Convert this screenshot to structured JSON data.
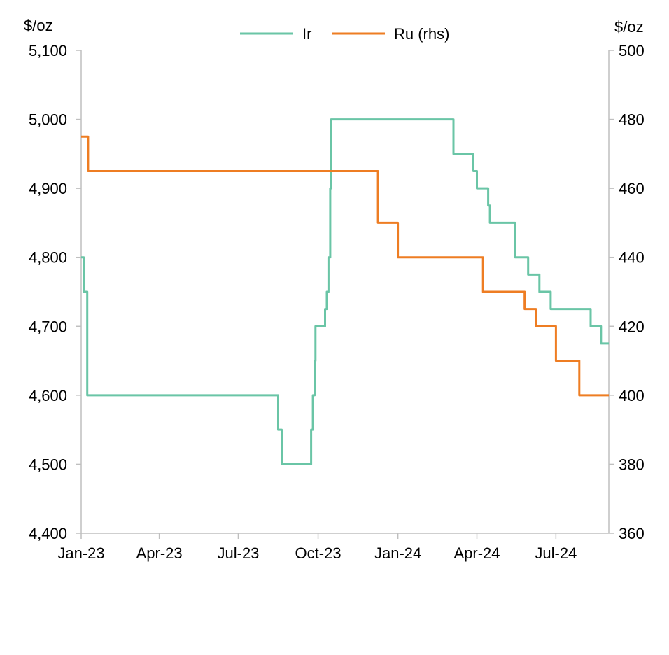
{
  "chart_data": {
    "type": "line",
    "left_unit": "$/oz",
    "right_unit": "$/oz",
    "x_ticks": [
      "Jan-23",
      "Apr-23",
      "Jul-23",
      "Oct-23",
      "Jan-24",
      "Apr-24",
      "Jul-24"
    ],
    "x_tick_dates": [
      "2023-01-01",
      "2023-04-01",
      "2023-07-01",
      "2023-10-01",
      "2024-01-01",
      "2024-04-01",
      "2024-07-01"
    ],
    "xlim": [
      "2023-01-01",
      "2024-08-31"
    ],
    "y_left": {
      "lim": [
        4400,
        5100
      ],
      "ticks": [
        "4,400",
        "4,500",
        "4,600",
        "4,700",
        "4,800",
        "4,900",
        "5,000",
        "5,100"
      ]
    },
    "y_right": {
      "lim": [
        360,
        500
      ],
      "ticks": [
        "360",
        "380",
        "400",
        "420",
        "440",
        "460",
        "480",
        "500"
      ]
    },
    "grid": false,
    "legend_position": "top",
    "series": [
      {
        "name": "Ir",
        "axis": "left",
        "color": "#6ac5a6",
        "step": true,
        "points": [
          [
            "2023-01-01",
            4800
          ],
          [
            "2023-01-04",
            4750
          ],
          [
            "2023-01-07",
            4750
          ],
          [
            "2023-01-08",
            4600
          ],
          [
            "2023-08-15",
            4600
          ],
          [
            "2023-08-16",
            4550
          ],
          [
            "2023-08-19",
            4550
          ],
          [
            "2023-08-20",
            4500
          ],
          [
            "2023-09-22",
            4500
          ],
          [
            "2023-09-23",
            4550
          ],
          [
            "2023-09-25",
            4600
          ],
          [
            "2023-09-26",
            4600
          ],
          [
            "2023-09-27",
            4650
          ],
          [
            "2023-09-28",
            4700
          ],
          [
            "2023-10-08",
            4700
          ],
          [
            "2023-10-09",
            4725
          ],
          [
            "2023-10-10",
            4725
          ],
          [
            "2023-10-11",
            4750
          ],
          [
            "2023-10-13",
            4800
          ],
          [
            "2023-10-15",
            4900
          ],
          [
            "2023-10-16",
            5000
          ],
          [
            "2024-03-04",
            5000
          ],
          [
            "2024-03-05",
            4950
          ],
          [
            "2024-03-27",
            4950
          ],
          [
            "2024-03-28",
            4925
          ],
          [
            "2024-03-31",
            4925
          ],
          [
            "2024-04-01",
            4900
          ],
          [
            "2024-04-13",
            4900
          ],
          [
            "2024-04-14",
            4875
          ],
          [
            "2024-04-15",
            4875
          ],
          [
            "2024-04-16",
            4850
          ],
          [
            "2024-05-14",
            4850
          ],
          [
            "2024-05-15",
            4800
          ],
          [
            "2024-05-29",
            4800
          ],
          [
            "2024-05-30",
            4775
          ],
          [
            "2024-06-11",
            4775
          ],
          [
            "2024-06-12",
            4750
          ],
          [
            "2024-06-24",
            4750
          ],
          [
            "2024-06-25",
            4725
          ],
          [
            "2024-08-09",
            4725
          ],
          [
            "2024-08-10",
            4700
          ],
          [
            "2024-08-21",
            4700
          ],
          [
            "2024-08-22",
            4675
          ],
          [
            "2024-08-31",
            4675
          ]
        ]
      },
      {
        "name": "Ru (rhs)",
        "axis": "right",
        "color": "#ee7d23",
        "step": true,
        "points": [
          [
            "2023-01-01",
            475
          ],
          [
            "2023-01-08",
            475
          ],
          [
            "2023-01-09",
            465
          ],
          [
            "2023-12-08",
            465
          ],
          [
            "2023-12-09",
            450
          ],
          [
            "2023-12-31",
            450
          ],
          [
            "2024-01-01",
            440
          ],
          [
            "2024-04-07",
            440
          ],
          [
            "2024-04-08",
            430
          ],
          [
            "2024-05-25",
            430
          ],
          [
            "2024-05-26",
            425
          ],
          [
            "2024-06-07",
            425
          ],
          [
            "2024-06-08",
            420
          ],
          [
            "2024-06-30",
            420
          ],
          [
            "2024-07-01",
            410
          ],
          [
            "2024-07-27",
            410
          ],
          [
            "2024-07-28",
            400
          ],
          [
            "2024-08-31",
            400
          ]
        ]
      }
    ]
  }
}
